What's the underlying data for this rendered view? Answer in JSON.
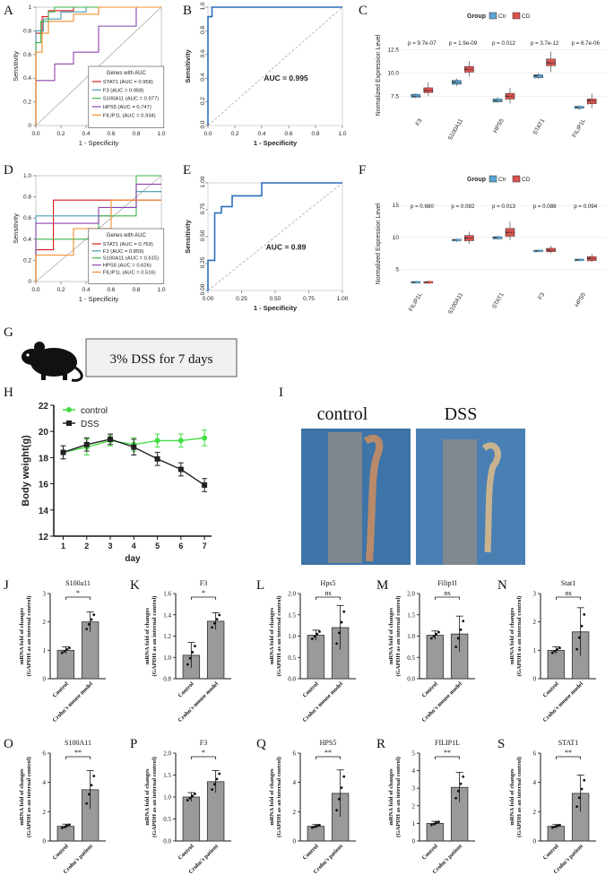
{
  "panels": {
    "A": "A",
    "B": "B",
    "C": "C",
    "D": "D",
    "E": "E",
    "F": "F",
    "G": "G",
    "H": "H",
    "I": "I",
    "J": "J",
    "K": "K",
    "L": "L",
    "M": "M",
    "N": "N",
    "O": "O",
    "P": "P",
    "Q": "Q",
    "R": "R",
    "S": "S"
  },
  "g": {
    "text": "3% DSS for 7 days"
  },
  "i": {
    "left": "control",
    "right": "DSS"
  },
  "colors": {
    "red": "#d7191c",
    "teal": "#4a9ab0",
    "green": "#3cb44b",
    "purple": "#8e44ad",
    "orange": "#f28e2b",
    "blue": "#2c6fbb",
    "ctr": "#5ba4cf",
    "cd": "#d9534f",
    "dss_green": "#44dd44"
  },
  "chart_data": [
    {
      "id": "A",
      "type": "line",
      "xlabel": "1 - Specificity",
      "ylabel": "Sensitivity",
      "xticks": [
        "0.0",
        "0.2",
        "0.4",
        "0.6",
        "0.8",
        "1.0"
      ],
      "yticks": [
        "0",
        "0.2",
        "0.4",
        "0.6",
        "0.8",
        "1"
      ],
      "legend_title": "Genes with AUC",
      "series": [
        {
          "name": "STAT1 (AUC = 0.958)",
          "color": "#d7191c",
          "x": [
            0,
            0,
            0.05,
            0.05,
            0.1,
            0.1,
            0.3,
            0.3,
            1
          ],
          "y": [
            0,
            0.78,
            0.78,
            0.92,
            0.92,
            0.97,
            0.97,
            1,
            1
          ]
        },
        {
          "name": "F3 (AUC = 0.958)",
          "color": "#4a9ab0",
          "x": [
            0,
            0,
            0.06,
            0.06,
            0.2,
            0.2,
            0.4,
            0.4,
            1
          ],
          "y": [
            0,
            0.8,
            0.8,
            0.9,
            0.9,
            0.96,
            0.96,
            1,
            1
          ]
        },
        {
          "name": "S100A11 (AUC = 0.977)",
          "color": "#3cb44b",
          "x": [
            0,
            0,
            0.04,
            0.04,
            0.1,
            0.1,
            0.15,
            0.15,
            1
          ],
          "y": [
            0,
            0.7,
            0.7,
            0.88,
            0.88,
            0.96,
            0.96,
            1,
            1
          ]
        },
        {
          "name": "HPS5 (AUC = 0.747)",
          "color": "#8e44ad",
          "x": [
            0,
            0,
            0.15,
            0.15,
            0.3,
            0.3,
            0.5,
            0.5,
            0.8,
            0.8,
            1
          ],
          "y": [
            0,
            0.38,
            0.38,
            0.52,
            0.52,
            0.62,
            0.62,
            0.84,
            0.84,
            1,
            1
          ]
        },
        {
          "name": "FILIP1L (AUC = 0.934)",
          "color": "#f28e2b",
          "x": [
            0,
            0,
            0.05,
            0.05,
            0.1,
            0.1,
            0.3,
            0.3,
            0.5,
            0.5,
            1
          ],
          "y": [
            0,
            0.62,
            0.62,
            0.78,
            0.78,
            0.88,
            0.88,
            0.94,
            0.94,
            1,
            1
          ]
        }
      ]
    },
    {
      "id": "B",
      "type": "line",
      "xlabel": "1 - Specificity",
      "ylabel": "Sensitivity",
      "xticks": [
        "0.0",
        "0.2",
        "0.4",
        "0.6",
        "0.8",
        "1.0"
      ],
      "yticks": [
        "0.0",
        "0.2",
        "0.4",
        "0.6",
        "0.8",
        "1.0"
      ],
      "annotation": "AUC = 0.995",
      "series": [
        {
          "name": "",
          "color": "#2c6fbb",
          "x": [
            0,
            0,
            0.03,
            0.03,
            1
          ],
          "y": [
            0,
            0.92,
            0.92,
            1,
            1
          ]
        }
      ]
    },
    {
      "id": "C",
      "type": "box",
      "ylabel": "Normalized Expression Level",
      "legend_title": "Group",
      "groups": [
        "Ctr",
        "CD"
      ],
      "categories": [
        "F3",
        "S100A11",
        "HPS5",
        "STAT1",
        "FILIP1L"
      ],
      "pvalues": [
        "p = 9.7e-07",
        "p = 1.9e-09",
        "p = 0.012",
        "p = 3.7e-12",
        "p = 6.7e-06"
      ],
      "yticks": [
        "7.5",
        "10.0",
        "12.5"
      ],
      "ylim": [
        5.5,
        14
      ],
      "ctr": [
        [
          7.3,
          7.4,
          7.5,
          7.7,
          7.8
        ],
        [
          8.6,
          8.8,
          9.0,
          9.2,
          9.4
        ],
        [
          6.8,
          6.9,
          7.0,
          7.2,
          7.4
        ],
        [
          9.4,
          9.5,
          9.7,
          9.8,
          10.0
        ],
        [
          6.0,
          6.2,
          6.3,
          6.4,
          6.5
        ]
      ],
      "cd": [
        [
          7.5,
          7.9,
          8.1,
          8.4,
          9.0
        ],
        [
          9.6,
          10.1,
          10.4,
          10.7,
          11.3
        ],
        [
          6.7,
          7.2,
          7.5,
          7.8,
          8.4
        ],
        [
          10.1,
          10.8,
          11.1,
          11.5,
          12.3
        ],
        [
          6.2,
          6.7,
          7.0,
          7.2,
          7.8
        ]
      ]
    },
    {
      "id": "D",
      "type": "line",
      "xlabel": "1 - Specificity",
      "ylabel": "Sensitivity",
      "xticks": [
        "0.0",
        "0.2",
        "0.4",
        "0.6",
        "0.8",
        "1.0"
      ],
      "yticks": [
        "0",
        "0.2",
        "0.4",
        "0.6",
        "0.8",
        "1.0"
      ],
      "legend_title": "Genes with AUC",
      "series": [
        {
          "name": "STAT1 (AUC = 0.769)",
          "color": "#d7191c",
          "x": [
            0,
            0,
            0.14,
            0.14,
            1
          ],
          "y": [
            0,
            0.3,
            0.3,
            0.77,
            0.77
          ]
        },
        {
          "name": "F3 (AUC = 0.859)",
          "color": "#4a9ab0",
          "x": [
            0,
            0,
            0.6,
            0.6,
            0.8,
            0.8,
            1
          ],
          "y": [
            0,
            0.62,
            0.62,
            0.7,
            0.7,
            0.85,
            0.85
          ]
        },
        {
          "name": "S100A11 (AUC = 0.615)",
          "color": "#3cb44b",
          "x": [
            0,
            0,
            0.5,
            0.5,
            0.8,
            0.8,
            1
          ],
          "y": [
            0,
            0.4,
            0.4,
            0.62,
            0.62,
            1,
            1
          ]
        },
        {
          "name": "HPS5 (AUC = 0.626)",
          "color": "#8e44ad",
          "x": [
            0,
            0,
            0.5,
            0.5,
            0.8,
            0.8,
            1
          ],
          "y": [
            0,
            0.55,
            0.55,
            0.7,
            0.7,
            0.92,
            0.92
          ]
        },
        {
          "name": "FILIP1L (AUC = 0.516)",
          "color": "#f28e2b",
          "x": [
            0,
            0,
            0.3,
            0.3,
            0.6,
            0.6,
            1
          ],
          "y": [
            0,
            0.25,
            0.25,
            0.5,
            0.5,
            0.77,
            0.77
          ]
        }
      ]
    },
    {
      "id": "E",
      "type": "line",
      "xlabel": "1 - Specificity",
      "ylabel": "Sensitivity",
      "xticks": [
        "0.00",
        "0.25",
        "0.50",
        "0.75",
        "1.00"
      ],
      "yticks": [
        "0.00",
        "0.25",
        "0.50",
        "0.75",
        "1.00"
      ],
      "annotation": "AUC = 0.89",
      "series": [
        {
          "name": "",
          "color": "#2c6fbb",
          "x": [
            0,
            0,
            0.05,
            0.05,
            0.1,
            0.1,
            0.18,
            0.18,
            0.4,
            0.4,
            1
          ],
          "y": [
            0,
            0.28,
            0.28,
            0.72,
            0.72,
            0.78,
            0.78,
            0.88,
            0.88,
            1,
            1
          ]
        }
      ]
    },
    {
      "id": "F",
      "type": "box",
      "ylabel": "Normalized Expression Level",
      "legend_title": "Group",
      "groups": [
        "Ctr",
        "CD"
      ],
      "categories": [
        "FILIP1L",
        "S100A11",
        "STAT1",
        "F3",
        "HPS5"
      ],
      "pvalues": [
        "p = 0.680",
        "p = 0.082",
        "p = 0.013",
        "p = 0.088",
        "p = 0.094"
      ],
      "yticks": [
        "5",
        "10",
        "15"
      ],
      "ylim": [
        2,
        16
      ],
      "ctr": [
        [
          2.8,
          2.9,
          3.0,
          3.1,
          3.2
        ],
        [
          9.3,
          9.5,
          9.6,
          9.7,
          9.8
        ],
        [
          9.7,
          9.8,
          10.0,
          10.1,
          10.3
        ],
        [
          7.7,
          7.8,
          7.9,
          8.0,
          8.1
        ],
        [
          6.3,
          6.4,
          6.5,
          6.6,
          6.7
        ]
      ],
      "cd": [
        [
          2.7,
          2.9,
          3.0,
          3.1,
          3.3
        ],
        [
          9.0,
          9.5,
          9.9,
          10.3,
          10.9
        ],
        [
          9.6,
          10.2,
          10.8,
          11.4,
          12.5
        ],
        [
          7.5,
          7.8,
          8.0,
          8.3,
          8.7
        ],
        [
          6.1,
          6.4,
          6.7,
          7.0,
          7.4
        ]
      ]
    },
    {
      "id": "H",
      "type": "line",
      "xlabel": "day",
      "ylabel": "Body weight(g)",
      "xticks": [
        "1",
        "2",
        "3",
        "4",
        "5",
        "6",
        "7"
      ],
      "yticks": [
        "12",
        "14",
        "16",
        "18",
        "20",
        "22"
      ],
      "ylim": [
        12,
        22
      ],
      "series": [
        {
          "name": "control",
          "color": "#44dd44",
          "x": [
            1,
            2,
            3,
            4,
            5,
            6,
            7
          ],
          "y": [
            18.4,
            18.8,
            19.3,
            19.0,
            19.3,
            19.3,
            19.5
          ],
          "err": [
            0.5,
            0.6,
            0.4,
            0.5,
            0.5,
            0.5,
            0.6
          ]
        },
        {
          "name": "DSS",
          "color": "#222222",
          "x": [
            1,
            2,
            3,
            4,
            5,
            6,
            7
          ],
          "y": [
            18.4,
            19.0,
            19.4,
            18.8,
            17.9,
            17.1,
            15.9
          ],
          "err": [
            0.5,
            0.5,
            0.4,
            0.6,
            0.5,
            0.5,
            0.5
          ]
        }
      ]
    },
    {
      "id": "J",
      "type": "bar",
      "title": "S100a11",
      "sig": "*",
      "yticks": [
        "0",
        "1",
        "2",
        "3"
      ],
      "ylim": [
        0,
        3
      ],
      "categories": [
        "Control",
        "Crohn's mouse model"
      ],
      "values": [
        1.0,
        2.0
      ],
      "err": [
        0.12,
        0.35
      ],
      "ylabel": "mRNA fold of changes",
      "ylabel2": "(GAPDH as an internal control)"
    },
    {
      "id": "K",
      "type": "bar",
      "title": "F3",
      "sig": "*",
      "yticks": [
        "0.8",
        "1.0",
        "1.2",
        "1.4",
        "1.6"
      ],
      "ylim": [
        0.8,
        1.6
      ],
      "categories": [
        "Control",
        "Crohn's mouse model"
      ],
      "values": [
        1.02,
        1.34
      ],
      "err": [
        0.12,
        0.08
      ],
      "ylabel": "mRNA fold of changes",
      "ylabel2": "(GAPDH as an internal control)"
    },
    {
      "id": "L",
      "type": "bar",
      "title": "Hps5",
      "sig": "ns",
      "yticks": [
        "0.0",
        "0.5",
        "1.0",
        "1.5",
        "2.0"
      ],
      "ylim": [
        0,
        2
      ],
      "categories": [
        "Control",
        "Crohn's mouse model"
      ],
      "values": [
        1.02,
        1.2
      ],
      "err": [
        0.12,
        0.52
      ],
      "ylabel": "mRNA fold of changes",
      "ylabel2": "(GAPDH as an internal control)"
    },
    {
      "id": "M",
      "type": "bar",
      "title": "Filip1l",
      "sig": "ns",
      "yticks": [
        "0.0",
        "0.5",
        "1.0",
        "1.5",
        "2.0"
      ],
      "ylim": [
        0,
        2
      ],
      "categories": [
        "Control",
        "Crohn's mouse model"
      ],
      "values": [
        1.02,
        1.05
      ],
      "err": [
        0.1,
        0.42
      ],
      "ylabel": "mRNA fold of changes",
      "ylabel2": "(GAPDH as an internal control)"
    },
    {
      "id": "N",
      "type": "bar",
      "title": "Stat1",
      "sig": "ns",
      "yticks": [
        "0",
        "1",
        "2",
        "3"
      ],
      "ylim": [
        0,
        3
      ],
      "categories": [
        "Control",
        "Crohn's mouse model"
      ],
      "values": [
        1.0,
        1.65
      ],
      "err": [
        0.12,
        0.85
      ],
      "ylabel": "mRNA fold of changes",
      "ylabel2": "(GAPDH as an internal control)"
    },
    {
      "id": "O",
      "type": "bar",
      "title": "S100A11",
      "sig": "**",
      "yticks": [
        "0",
        "2",
        "4",
        "6"
      ],
      "ylim": [
        0,
        6
      ],
      "categories": [
        "Control",
        "Crohn's patient"
      ],
      "values": [
        1.0,
        3.5
      ],
      "err": [
        0.15,
        1.3
      ],
      "ylabel": "mRNA fold of changes",
      "ylabel2": "(GAPDH as an internal control)"
    },
    {
      "id": "P",
      "type": "bar",
      "title": "F3",
      "sig": "*",
      "yticks": [
        "0.0",
        "0.5",
        "1.0",
        "1.5",
        "2.0"
      ],
      "ylim": [
        0,
        2
      ],
      "categories": [
        "Control",
        "Crohn's patient"
      ],
      "values": [
        1.0,
        1.35
      ],
      "err": [
        0.1,
        0.25
      ],
      "ylabel": "mRNA fold of changes",
      "ylabel2": "(GAPDH as an internal control)"
    },
    {
      "id": "Q",
      "type": "bar",
      "title": "HPS5",
      "sig": "**",
      "yticks": [
        "0",
        "2",
        "4",
        "6"
      ],
      "ylim": [
        0,
        6
      ],
      "categories": [
        "Control",
        "Crohn's patient"
      ],
      "values": [
        1.0,
        3.25
      ],
      "err": [
        0.12,
        1.6
      ],
      "ylabel": "mRNA fold of changes",
      "ylabel2": "(GAPDH as an internal control)"
    },
    {
      "id": "R",
      "type": "bar",
      "title": "FILIP1L",
      "sig": "**",
      "yticks": [
        "0",
        "1",
        "2",
        "3",
        "4",
        "5"
      ],
      "ylim": [
        0,
        5
      ],
      "categories": [
        "Control",
        "Crohn's patient"
      ],
      "values": [
        1.0,
        3.05
      ],
      "err": [
        0.12,
        0.85
      ],
      "ylabel": "mRNA fold of changes",
      "ylabel2": "(GAPDH as an internal control)"
    },
    {
      "id": "S",
      "type": "bar",
      "title": "STAT1",
      "sig": "**",
      "yticks": [
        "0",
        "2",
        "4",
        "6"
      ],
      "ylim": [
        0,
        6
      ],
      "categories": [
        "Control",
        "Crohn's patient"
      ],
      "values": [
        1.0,
        3.25
      ],
      "err": [
        0.12,
        1.25
      ],
      "ylabel": "mRNA fold of changes",
      "ylabel2": "(GAPDH as an internal control)"
    }
  ]
}
